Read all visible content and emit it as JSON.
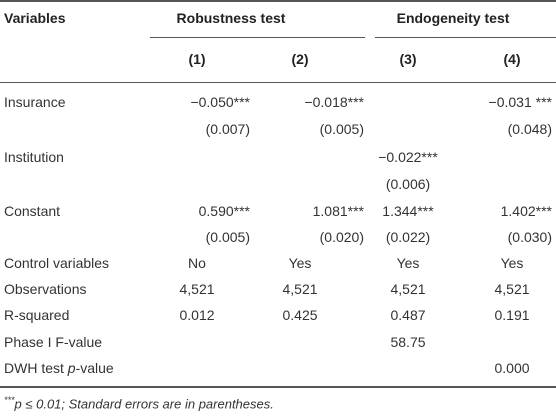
{
  "header": {
    "variables_label": "Variables",
    "groups": [
      {
        "label": "Robustness test"
      },
      {
        "label": "Endogeneity test"
      }
    ],
    "columns": [
      "(1)",
      "(2)",
      "(3)",
      "(4)"
    ]
  },
  "rows": [
    {
      "label": "Insurance",
      "cells": [
        "−0.050***",
        "−0.018***",
        "",
        "−0.031 ***"
      ]
    },
    {
      "label": "",
      "cells": [
        "(0.007)",
        "(0.005)",
        "",
        "(0.048)"
      ]
    },
    {
      "label": "Institution",
      "cells": [
        "",
        "",
        "−0.022***",
        ""
      ]
    },
    {
      "label": "",
      "cells": [
        "",
        "",
        "(0.006)",
        ""
      ]
    },
    {
      "label": "Constant",
      "cells": [
        "0.590***",
        "1.081***",
        "1.344***",
        "1.402***"
      ]
    },
    {
      "label": "",
      "cells": [
        "(0.005)",
        "(0.020)",
        "(0.022)",
        "(0.030)"
      ]
    },
    {
      "label": "Control variables",
      "cells": [
        "No",
        "Yes",
        "Yes",
        "Yes"
      ]
    },
    {
      "label": "Observations",
      "cells": [
        "4,521",
        "4,521",
        "4,521",
        "4,521"
      ]
    },
    {
      "label": "R-squared",
      "cells": [
        "0.012",
        "0.425",
        "0.487",
        "0.191"
      ]
    },
    {
      "label": "Phase I F-value",
      "cells": [
        "",
        "",
        "58.75",
        ""
      ]
    },
    {
      "label": "DWH test p-value",
      "cells": [
        "",
        "",
        "",
        "0.000"
      ]
    }
  ],
  "footnote": {
    "stars": "***",
    "text": "p ≤ 0.01; Standard errors are in parentheses."
  }
}
